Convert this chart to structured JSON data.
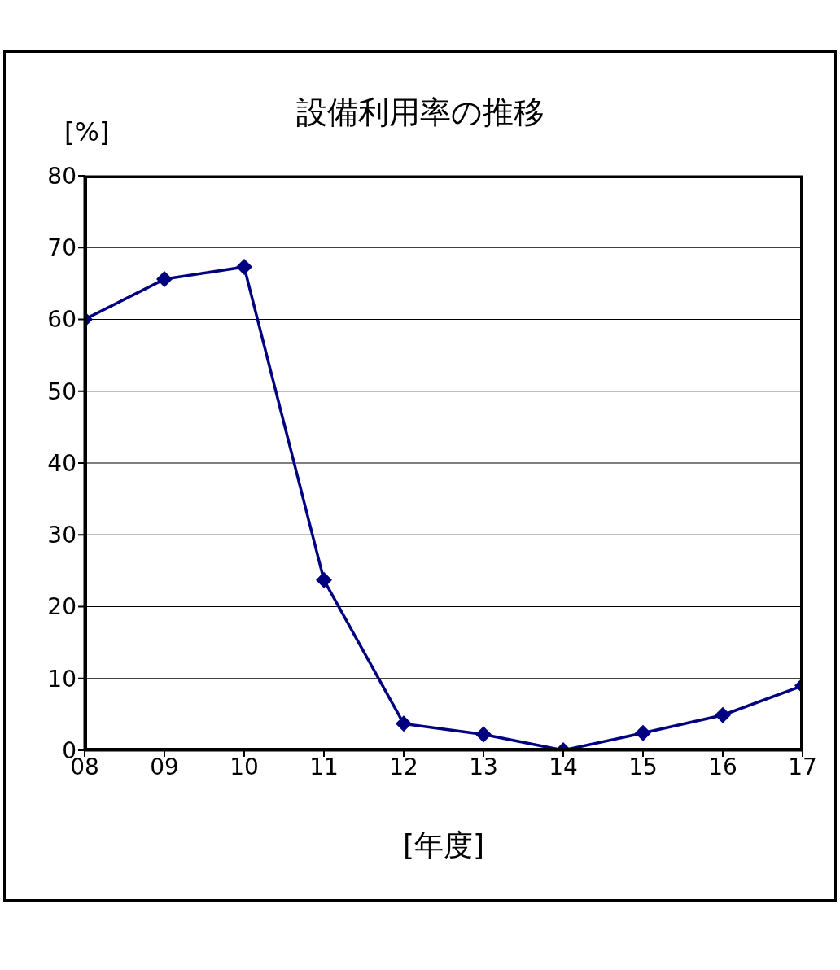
{
  "chart_data": {
    "type": "line",
    "title": "設備利用率の推移",
    "xlabel": "[年度]",
    "ylabel": "[%]",
    "categories": [
      "08",
      "09",
      "10",
      "11",
      "12",
      "13",
      "14",
      "15",
      "16",
      "17"
    ],
    "series": [
      {
        "color": "#000080",
        "values": [
          60,
          65.6,
          67.3,
          23.7,
          3.7,
          2.2,
          0,
          2.4,
          4.9,
          9.0
        ]
      }
    ],
    "ylim": [
      0,
      80
    ],
    "yticks": [
      0,
      10,
      20,
      30,
      40,
      50,
      60,
      70,
      80
    ],
    "grid": "y",
    "marker": "diamond",
    "line_style": "solid"
  }
}
